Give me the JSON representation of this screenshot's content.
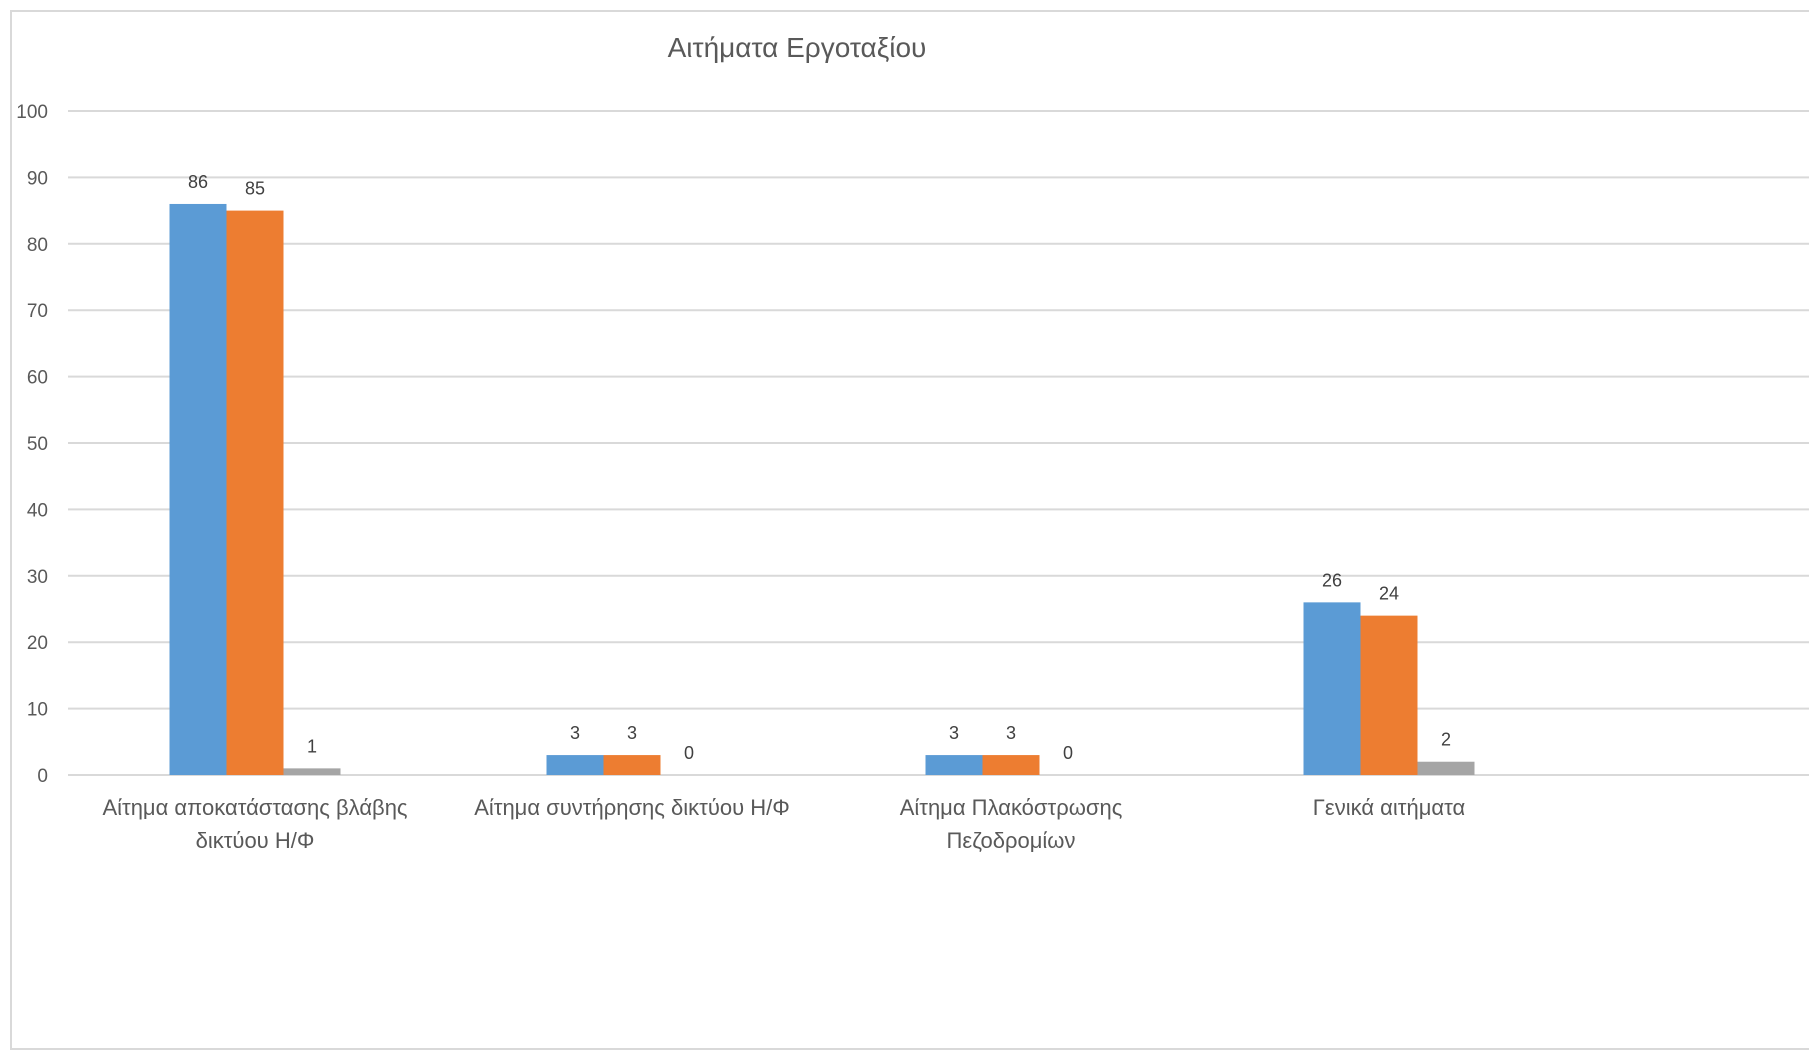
{
  "chart_data": {
    "type": "bar",
    "title": "Αιτήματα Εργοταξίου",
    "xlabel": "",
    "ylabel": "",
    "ylim": [
      0,
      100
    ],
    "yticks": [
      0,
      10,
      20,
      30,
      40,
      50,
      60,
      70,
      80,
      90,
      100
    ],
    "grid": true,
    "categories": [
      [
        "Αίτημα αποκατάστασης βλάβης",
        "δικτύου Η/Φ"
      ],
      [
        "Αίτημα συντήρησης δικτύου Η/Φ"
      ],
      [
        "Αίτημα Πλακόστρωσης",
        "Πεζοδρομίων"
      ],
      [
        "Γενικά αιτήματα"
      ]
    ],
    "series": [
      {
        "values": [
          86,
          3,
          3,
          26
        ],
        "color": "#5b9bd5"
      },
      {
        "values": [
          85,
          3,
          3,
          24
        ],
        "color": "#ed7d31"
      },
      {
        "values": [
          1,
          0,
          0,
          2
        ],
        "color": "#a5a5a5"
      }
    ],
    "colors": {
      "grid": "#d9d9d9",
      "axis_text": "#595959",
      "label_text": "#404040"
    }
  }
}
